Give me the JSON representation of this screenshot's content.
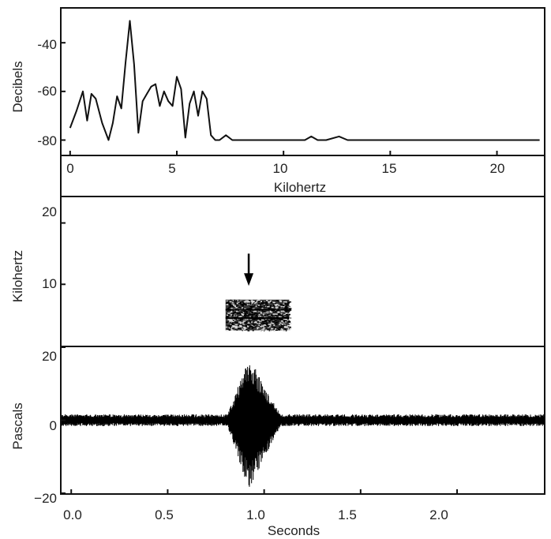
{
  "chart_data": [
    {
      "type": "line",
      "title": "",
      "xlabel": "Kilohertz",
      "ylabel": "Decibels",
      "xlim": [
        -0.4,
        22.2
      ],
      "ylim": [
        -86,
        -26
      ],
      "x_ticks": [
        "0",
        "5",
        "10",
        "15",
        "20"
      ],
      "y_ticks": [
        "-40",
        "-60",
        "-80"
      ],
      "grid": false,
      "series": [
        {
          "x": [
            0,
            0.3,
            0.6,
            0.8,
            1.0,
            1.2,
            1.5,
            1.8,
            2.0,
            2.2,
            2.4,
            2.6,
            2.8,
            3.0,
            3.2,
            3.4,
            3.6,
            3.8,
            4.0,
            4.2,
            4.4,
            4.6,
            4.8,
            5.0,
            5.2,
            5.4,
            5.6,
            5.8,
            6.0,
            6.2,
            6.4,
            6.6,
            6.8,
            7.0,
            7.3,
            7.6,
            8.0,
            9.0,
            10.0,
            11.0,
            11.3,
            11.6,
            12.0,
            12.6,
            13.0,
            14.0,
            16.0,
            18.0,
            20.0,
            22.0
          ],
          "y": [
            -75,
            -68,
            -60,
            -72,
            -61,
            -63,
            -73,
            -80,
            -73,
            -62,
            -67,
            -48,
            -31,
            -49,
            -77,
            -64,
            -61,
            -58,
            -57,
            -66,
            -60,
            -64,
            -66,
            -54,
            -59,
            -79,
            -65,
            -60,
            -70,
            -60,
            -63,
            -78,
            -80,
            -80,
            -78,
            -80,
            -80,
            -80,
            -80,
            -80,
            -78.5,
            -80,
            -80,
            -78.5,
            -80,
            -80,
            -80,
            -80,
            -80,
            -80
          ]
        }
      ]
    },
    {
      "type": "heatmap",
      "title": "",
      "xlabel": "",
      "ylabel": "Kilohertz",
      "xlim": [
        -0.05,
        2.45
      ],
      "ylim": [
        0,
        22
      ],
      "y_ticks": [
        "20",
        "10"
      ],
      "grid": false,
      "energy_region": {
        "t_start": 0.8,
        "t_end": 1.13,
        "f_low": 2.5,
        "f_high": 7.5
      },
      "annotation": {
        "type": "arrow",
        "t": 0.92,
        "f_from": 15,
        "f_to": 10
      }
    },
    {
      "type": "line",
      "title": "",
      "xlabel": "Seconds",
      "ylabel": "Pascals",
      "xlim": [
        -0.05,
        2.45
      ],
      "ylim": [
        -20,
        20
      ],
      "x_ticks": [
        "0.0",
        "0.5",
        "1.0",
        "1.5",
        "2.0"
      ],
      "y_ticks": [
        "20",
        "0",
        "−20"
      ],
      "grid": false,
      "waveform": {
        "noise_amplitude": 1.4,
        "burst_start": 0.8,
        "burst_peak": 0.92,
        "burst_end": 1.1,
        "peak_amplitude_positive": 17.5,
        "peak_amplitude_negative": -19
      }
    }
  ]
}
